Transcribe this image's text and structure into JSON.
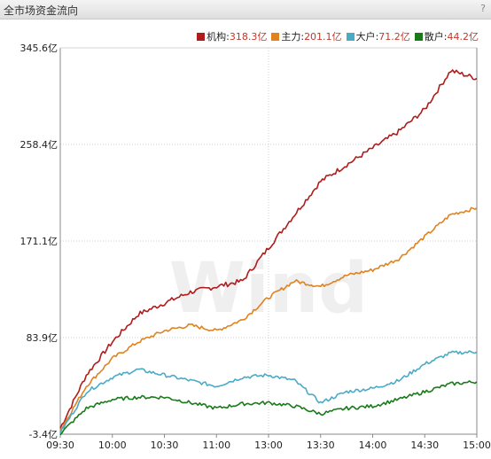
{
  "window": {
    "title": "全市场资金流向",
    "help_label": "?"
  },
  "legend": [
    {
      "name": "机构",
      "value": "318.3亿",
      "color": "#b01c1c"
    },
    {
      "name": "主力",
      "value": "201.1亿",
      "color": "#e0821e"
    },
    {
      "name": "大户",
      "value": "71.2亿",
      "color": "#4aabc6"
    },
    {
      "name": "散户",
      "value": "44.2亿",
      "color": "#1a7a1a"
    }
  ],
  "chart_data": {
    "type": "line",
    "unit": "亿",
    "y_ticks": [
      {
        "value": 345.6,
        "label": "345.6亿"
      },
      {
        "value": 258.4,
        "label": "258.4亿"
      },
      {
        "value": 171.1,
        "label": "171.1亿"
      },
      {
        "value": 83.9,
        "label": "83.9亿"
      },
      {
        "value": -3.4,
        "label": "-3.4亿"
      }
    ],
    "ylim": [
      -3.4,
      345.6
    ],
    "x_ticks": [
      "09:30",
      "10:00",
      "10:30",
      "11:00",
      "13:00",
      "13:30",
      "14:00",
      "14:30",
      "15:00"
    ],
    "x": [
      "09:30",
      "09:45",
      "10:00",
      "10:15",
      "10:30",
      "10:45",
      "11:00",
      "11:15",
      "13:00",
      "13:15",
      "13:30",
      "13:45",
      "14:00",
      "14:15",
      "14:30",
      "14:45",
      "15:00"
    ],
    "series": [
      {
        "name": "机构",
        "color": "#b01c1c",
        "values": [
          2,
          50,
          80,
          105,
          115,
          125,
          130,
          135,
          165,
          195,
          225,
          240,
          255,
          270,
          290,
          325,
          318
        ]
      },
      {
        "name": "主力",
        "color": "#e0821e",
        "values": [
          0,
          40,
          65,
          80,
          90,
          95,
          90,
          100,
          120,
          135,
          130,
          140,
          145,
          155,
          175,
          195,
          201
        ]
      },
      {
        "name": "大户",
        "color": "#4aabc6",
        "values": [
          -2,
          35,
          48,
          55,
          50,
          45,
          40,
          48,
          50,
          45,
          25,
          35,
          38,
          45,
          60,
          70,
          71
        ]
      },
      {
        "name": "散户",
        "color": "#1a7a1a",
        "values": [
          -3,
          20,
          28,
          30,
          30,
          25,
          20,
          24,
          25,
          22,
          15,
          20,
          22,
          28,
          35,
          42,
          44
        ]
      }
    ],
    "grid": true,
    "legend_position": "top-right",
    "watermark": "Wind"
  }
}
